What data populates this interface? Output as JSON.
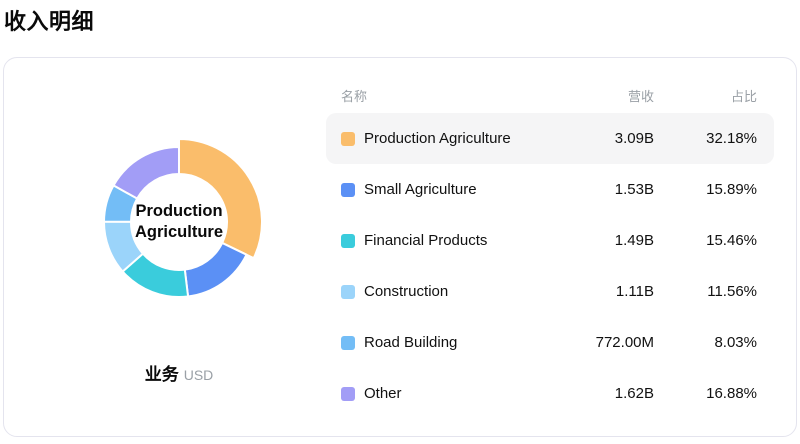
{
  "page": {
    "title": "收入明细"
  },
  "chart_data": {
    "type": "pie",
    "subtype": "donut",
    "title": "收入明细",
    "caption": "业务",
    "unit": "USD",
    "center_label": "Production Agriculture",
    "selected": "Production Agriculture",
    "legend_position": "right-table",
    "categories": [
      "Production Agriculture",
      "Small Agriculture",
      "Financial Products",
      "Construction",
      "Road Building",
      "Other"
    ],
    "values": [
      32.18,
      15.89,
      15.46,
      11.56,
      8.03,
      16.88
    ],
    "segments": [
      {
        "label": "Production Agriculture",
        "revenue": "3.09B",
        "percent": 32.18,
        "share": "32.18%",
        "color": "#FABD6B",
        "highlighted": true
      },
      {
        "label": "Small Agriculture",
        "revenue": "1.53B",
        "percent": 15.89,
        "share": "15.89%",
        "color": "#5B90F5",
        "highlighted": false
      },
      {
        "label": "Financial Products",
        "revenue": "1.49B",
        "percent": 15.46,
        "share": "15.46%",
        "color": "#3ACCDC",
        "highlighted": false
      },
      {
        "label": "Construction",
        "revenue": "1.11B",
        "percent": 11.56,
        "share": "11.56%",
        "color": "#9BD4FA",
        "highlighted": false
      },
      {
        "label": "Road Building",
        "revenue": "772.00M",
        "percent": 8.03,
        "share": "8.03%",
        "color": "#73BDF6",
        "highlighted": false
      },
      {
        "label": "Other",
        "revenue": "1.62B",
        "percent": 16.88,
        "share": "16.88%",
        "color": "#A29DF6",
        "highlighted": false
      }
    ]
  },
  "table": {
    "headers": {
      "name": "名称",
      "revenue": "营收",
      "share": "占比"
    }
  },
  "colors": {
    "highlight_row_bg": "#f5f5f6",
    "card_border": "#e4e4ee",
    "muted_text": "#9aa0a6"
  }
}
